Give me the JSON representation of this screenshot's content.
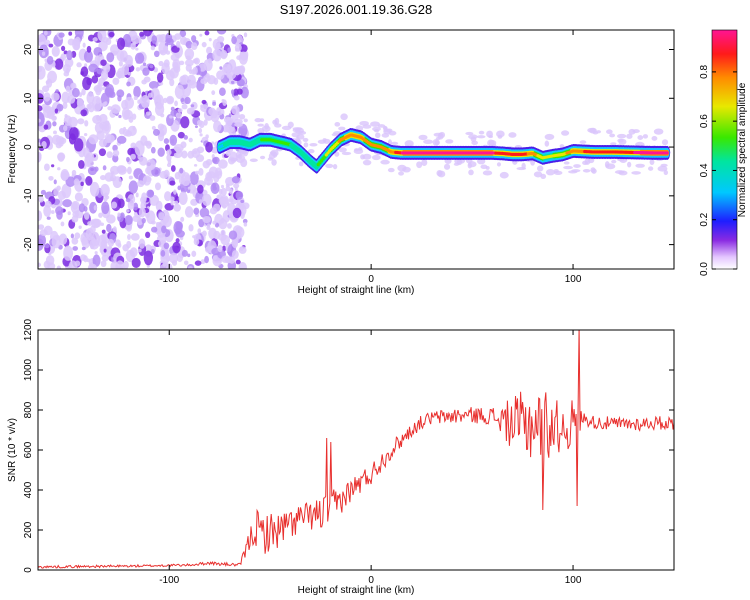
{
  "title": "S197.2026.001.19.36.G28",
  "chart_data": [
    {
      "type": "heatmap",
      "title": "S197.2026.001.19.36.G28",
      "xlabel": "Height of straight line (km)",
      "ylabel": "Frequency (Hz)",
      "xlim": [
        -165,
        150
      ],
      "ylim": [
        -25,
        24
      ],
      "xticks": [
        "-100",
        "0",
        "100"
      ],
      "yticks": [
        "20",
        "10",
        "0",
        "-10",
        "-20"
      ],
      "noise_region_x": [
        -165,
        -70
      ],
      "ridge": {
        "x": [
          -75,
          -70,
          -65,
          -60,
          -55,
          -50,
          -45,
          -40,
          -35,
          -30,
          -27,
          -25,
          -20,
          -15,
          -10,
          -5,
          0,
          5,
          10,
          15,
          20,
          30,
          40,
          50,
          60,
          65,
          70,
          75,
          80,
          85,
          90,
          95,
          100,
          110,
          120,
          130,
          140,
          147
        ],
        "y": [
          0,
          1,
          1,
          0.5,
          1.5,
          1.5,
          1,
          0.5,
          -1,
          -3,
          -4,
          -3,
          -0.5,
          1.5,
          2.5,
          2,
          0.5,
          0,
          -1,
          -1.2,
          -1.2,
          -1.2,
          -1.2,
          -1.2,
          -1.2,
          -1.3,
          -1.5,
          -1.5,
          -1.3,
          -2.2,
          -1.8,
          -1.5,
          -0.8,
          -1,
          -1,
          -1.1,
          -1.2,
          -1.2
        ],
        "amplitude": [
          0.3,
          0.35,
          0.4,
          0.35,
          0.45,
          0.5,
          0.5,
          0.45,
          0.4,
          0.45,
          0.45,
          0.5,
          0.6,
          0.7,
          0.8,
          0.75,
          0.7,
          0.7,
          0.75,
          0.9,
          0.95,
          0.95,
          0.95,
          0.95,
          0.92,
          0.85,
          0.8,
          0.85,
          0.75,
          0.6,
          0.6,
          0.65,
          0.75,
          0.85,
          0.9,
          0.9,
          0.92,
          0.92
        ]
      },
      "colorbar": {
        "label": "Normalized spectral amplitude",
        "ticks": [
          "0.0",
          "0.2",
          "0.4",
          "0.6",
          "0.8"
        ],
        "range": [
          0,
          0.97
        ]
      }
    },
    {
      "type": "line",
      "xlabel": "Height of straight line (km)",
      "ylabel": "SNR (10 * v/v)",
      "xlim": [
        -165,
        150
      ],
      "ylim": [
        0,
        1200
      ],
      "xticks": [
        "-100",
        "0",
        "100"
      ],
      "yticks": [
        "0",
        "200",
        "400",
        "600",
        "800",
        "1000",
        "1200"
      ],
      "series": [
        {
          "name": "SNR",
          "color": "#e8302e",
          "x": [
            -165,
            -140,
            -115,
            -90,
            -80,
            -75,
            -65,
            -60,
            -58,
            -55,
            -50,
            -45,
            -40,
            -35,
            -30,
            -25,
            -20,
            -15,
            -10,
            -5,
            0,
            5,
            10,
            15,
            20,
            25,
            30,
            40,
            50,
            60,
            70,
            75,
            80,
            85,
            90,
            95,
            100,
            105,
            110,
            120,
            130,
            140,
            150
          ],
          "envelope": [
            15,
            18,
            20,
            25,
            35,
            30,
            25,
            150,
            220,
            180,
            190,
            200,
            230,
            260,
            270,
            280,
            310,
            350,
            400,
            440,
            480,
            540,
            600,
            650,
            700,
            740,
            760,
            770,
            775,
            770,
            730,
            720,
            740,
            730,
            720,
            710,
            730,
            760,
            740,
            730,
            730,
            735,
            735
          ],
          "jitter": [
            6,
            6,
            6,
            6,
            8,
            8,
            8,
            60,
            100,
            110,
            100,
            90,
            80,
            75,
            70,
            90,
            90,
            70,
            60,
            60,
            55,
            50,
            45,
            40,
            35,
            35,
            35,
            40,
            40,
            45,
            130,
            180,
            200,
            200,
            150,
            120,
            130,
            30,
            35,
            35,
            35,
            35,
            35
          ]
        }
      ]
    }
  ]
}
